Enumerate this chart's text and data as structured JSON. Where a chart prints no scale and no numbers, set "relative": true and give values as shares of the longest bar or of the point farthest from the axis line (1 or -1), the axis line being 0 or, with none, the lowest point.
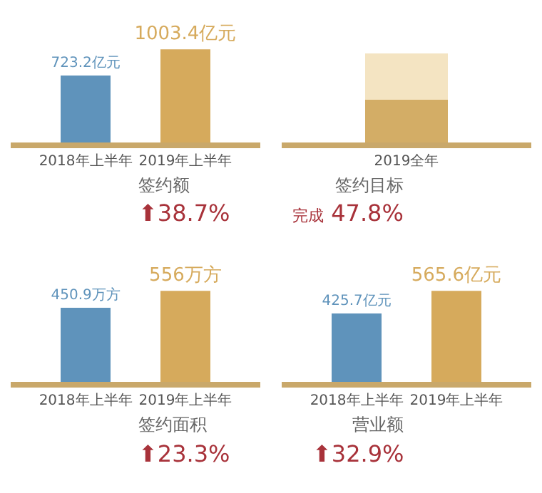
{
  "chart_data": [
    {
      "type": "bar",
      "categories": [
        "2018年上半年",
        "2019年上半年"
      ],
      "values": [
        723.2,
        1003.4
      ],
      "colors": [
        "#5f93bb",
        "#d6aa5c"
      ],
      "value_labels": [
        "723.2亿元",
        "1003.4亿元"
      ],
      "xlabel": "签约额",
      "annotations": [
        "⬆38.7%"
      ],
      "tick_labels": "x"
    },
    {
      "type": "bar",
      "stacked": true,
      "relative": true,
      "categories": [
        "2019全年"
      ],
      "series": [
        {
          "color": "#d3ad66",
          "values": [
            0.478
          ]
        },
        {
          "color": "#f4e4c2",
          "values": [
            0.522
          ]
        }
      ],
      "xlabel": "签约目标",
      "annotations": [
        "完成 47.8%"
      ],
      "tick_labels": "x"
    },
    {
      "type": "bar",
      "categories": [
        "2018年上半年",
        "2019年上半年"
      ],
      "values": [
        450.9,
        556
      ],
      "colors": [
        "#5f93bb",
        "#d6aa5c"
      ],
      "value_labels": [
        "450.9万方",
        "556万方"
      ],
      "xlabel": "签约面积",
      "annotations": [
        "⬆23.3%"
      ],
      "tick_labels": "x"
    },
    {
      "type": "bar",
      "categories": [
        "2018年上半年",
        "2019年上半年"
      ],
      "values": [
        425.7,
        565.6
      ],
      "colors": [
        "#5f93bb",
        "#d6aa5c"
      ],
      "value_labels": [
        "425.7亿元",
        "565.6亿元"
      ],
      "xlabel": "营业额",
      "annotations": [
        "⬆32.9%"
      ],
      "tick_labels": "x"
    }
  ]
}
